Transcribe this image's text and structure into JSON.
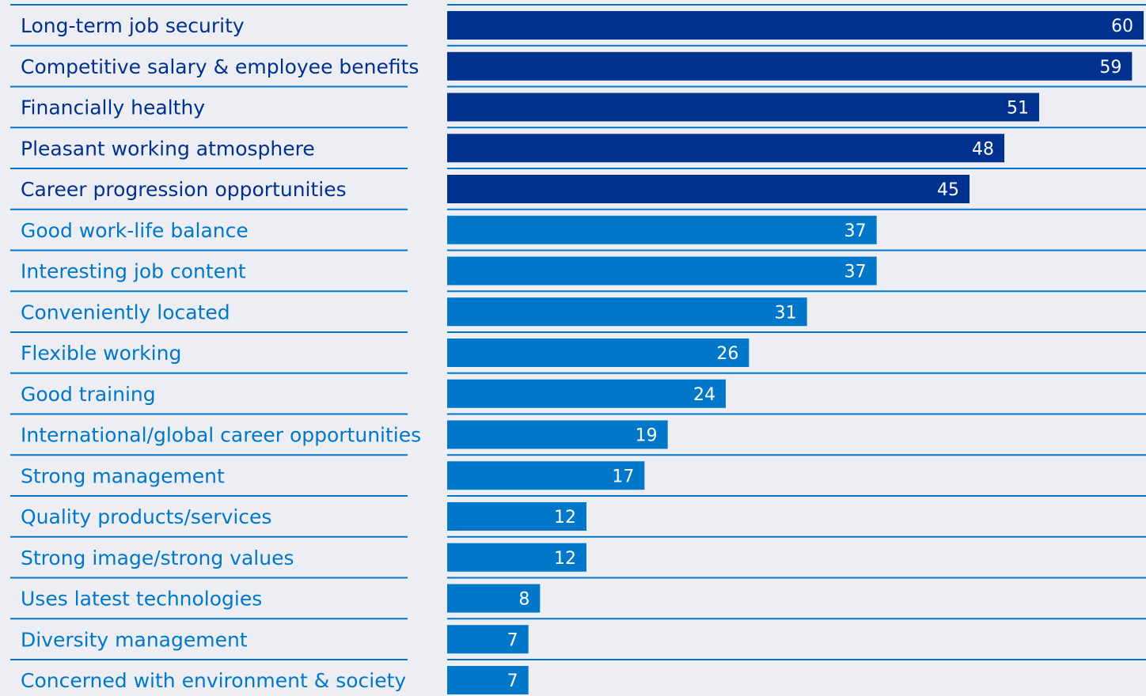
{
  "colors": {
    "background": "#eceef4",
    "top_group": "#00318f",
    "other_group": "#0077c8",
    "divider": "#0077c8"
  },
  "chart_data": {
    "type": "bar",
    "orientation": "horizontal",
    "title": "",
    "xlabel": "",
    "ylabel": "",
    "xlim": [
      0,
      60
    ],
    "grid": false,
    "legend": "none",
    "categories": [
      "Long-term job security",
      "Competitive salary & employee benefits",
      "Financially healthy",
      "Pleasant working atmosphere",
      "Career progression opportunities",
      "Good work-life balance",
      "Interesting job content",
      "Conveniently located",
      "Flexible working",
      "Good training",
      "International/global career opportunities",
      "Strong management",
      "Quality products/services",
      "Strong image/strong values",
      "Uses latest technologies",
      "Diversity management",
      "Concerned with environment & society"
    ],
    "values": [
      60,
      59,
      51,
      48,
      45,
      37,
      37,
      31,
      26,
      24,
      19,
      17,
      12,
      12,
      8,
      7,
      7
    ],
    "highlighted_top_count": 5
  }
}
